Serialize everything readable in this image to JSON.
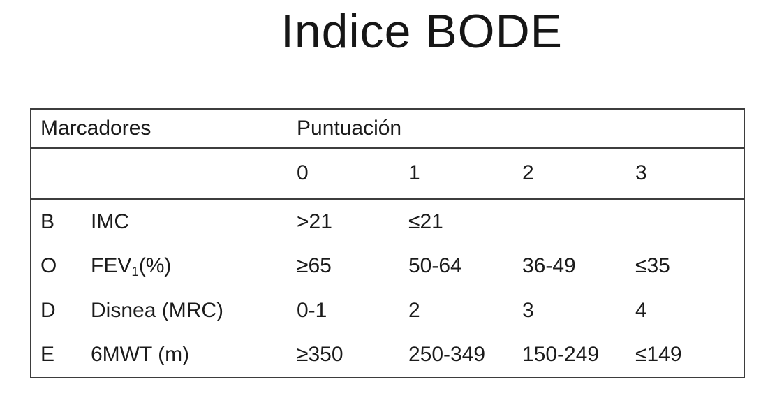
{
  "page": {
    "title": "Indice BODE",
    "background_color": "#ffffff",
    "text_color": "#1b1b1b",
    "table_border_color": "#3d3d3d"
  },
  "table": {
    "markers_header": "Marcadores",
    "score_header": "Puntuación",
    "score_columns": [
      "0",
      "1",
      "2",
      "3"
    ],
    "rows": [
      {
        "letter": "B",
        "marker_pre": "IMC",
        "marker_sub": "",
        "marker_post": "",
        "values": [
          ">21",
          "≤21",
          "",
          ""
        ]
      },
      {
        "letter": "O",
        "marker_pre": "FEV",
        "marker_sub": "1",
        "marker_post": "(%)",
        "values": [
          "≥65",
          "50-64",
          "36-49",
          "≤35"
        ]
      },
      {
        "letter": "D",
        "marker_pre": "Disnea (MRC)",
        "marker_sub": "",
        "marker_post": "",
        "values": [
          "0-1",
          "2",
          "3",
          "4"
        ]
      },
      {
        "letter": "E",
        "marker_pre": "6MWT (m)",
        "marker_sub": "",
        "marker_post": "",
        "values": [
          "≥350",
          "250-349",
          "150-249",
          "≤149"
        ]
      }
    ]
  },
  "chart_data": {
    "type": "table",
    "title": "Indice BODE",
    "columns": [
      "Marcadores",
      "Puntuación 0",
      "Puntuación 1",
      "Puntuación 2",
      "Puntuación 3"
    ],
    "rows": [
      [
        "B IMC",
        ">21",
        "≤21",
        "",
        ""
      ],
      [
        "O FEV1(%)",
        "≥65",
        "50-64",
        "36-49",
        "≤35"
      ],
      [
        "D Disnea (MRC)",
        "0-1",
        "2",
        "3",
        "4"
      ],
      [
        "E 6MWT (m)",
        "≥350",
        "250-349",
        "150-249",
        "≤149"
      ]
    ]
  }
}
